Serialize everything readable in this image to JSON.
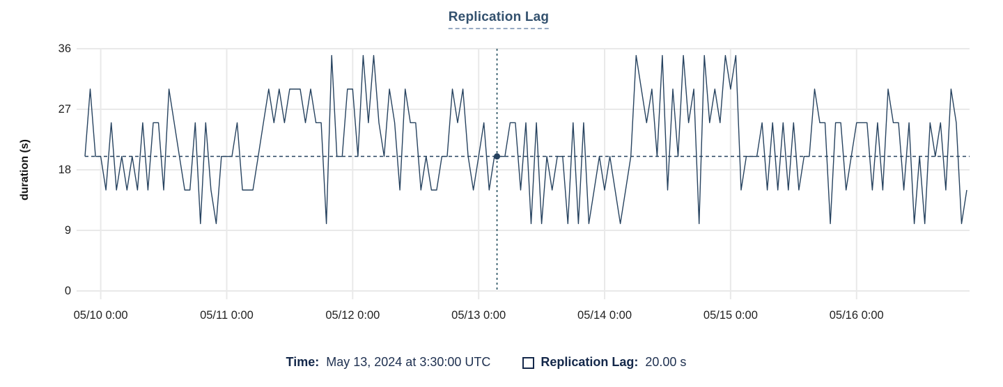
{
  "chart_data": {
    "type": "line",
    "title": "Replication Lag",
    "ylabel": "duration (s)",
    "xlabel": "",
    "ylim": [
      0,
      36
    ],
    "y_ticks": [
      0,
      9,
      18,
      27,
      36
    ],
    "grid": true,
    "legend_position": "top-center",
    "x_ticks": [
      {
        "index": 3,
        "label": "05/10 0:00"
      },
      {
        "index": 27,
        "label": "05/11 0:00"
      },
      {
        "index": 51,
        "label": "05/12 0:00"
      },
      {
        "index": 75,
        "label": "05/13 0:00"
      },
      {
        "index": 99,
        "label": "05/14 0:00"
      },
      {
        "index": 123,
        "label": "05/15 0:00"
      },
      {
        "index": 147,
        "label": "05/16 0:00"
      }
    ],
    "series": [
      {
        "name": "Replication Lag",
        "unit": "s",
        "color": "#26425f",
        "values": [
          20,
          30,
          20,
          20,
          15,
          25,
          15,
          20,
          15,
          20,
          15,
          25,
          15,
          25,
          25,
          15,
          30,
          25,
          20,
          15,
          15,
          25,
          10,
          25,
          15,
          10,
          20,
          20,
          20,
          25,
          15,
          15,
          15,
          20,
          25,
          30,
          25,
          30,
          25,
          30,
          30,
          30,
          25,
          30,
          25,
          25,
          10,
          35,
          20,
          20,
          30,
          30,
          20,
          35,
          25,
          35,
          25,
          20,
          30,
          25,
          15,
          30,
          25,
          25,
          15,
          20,
          15,
          15,
          20,
          20,
          30,
          25,
          30,
          20,
          15,
          20,
          25,
          15,
          20,
          20,
          20,
          25,
          25,
          15,
          25,
          10,
          25,
          10,
          20,
          15,
          20,
          20,
          10,
          25,
          10,
          25,
          10,
          15,
          20,
          15,
          20,
          15,
          10,
          15,
          20,
          35,
          30,
          25,
          30,
          20,
          35,
          15,
          30,
          20,
          35,
          25,
          30,
          10,
          35,
          25,
          30,
          25,
          35,
          30,
          35,
          15,
          20,
          20,
          20,
          25,
          15,
          25,
          15,
          25,
          15,
          25,
          15,
          20,
          20,
          30,
          25,
          25,
          10,
          25,
          25,
          15,
          20,
          25,
          25,
          25,
          15,
          25,
          15,
          30,
          25,
          25,
          15,
          25,
          10,
          20,
          10,
          25,
          20,
          25,
          15,
          30,
          25,
          10,
          15
        ]
      }
    ],
    "crosshair": {
      "x_index": 78.5,
      "value": 20,
      "time_label": "May 13, 2024 at 3:30:00 UTC",
      "value_label": "20.00 s"
    }
  },
  "footer": {
    "time_label": "Time:",
    "time_value": "May 13, 2024 at 3:30:00 UTC",
    "series_label": "Replication Lag:",
    "series_value": "20.00 s"
  },
  "colors": {
    "series_line": "#26425f",
    "crosshair_line": "#2e5665",
    "reference_line": "#26425f",
    "marker_dot": "#26425f",
    "grid_line": "#e9e9e9",
    "axis_text": "#1f1f1f",
    "title_text": "#33516e",
    "title_underline": "#97aac3",
    "footer_label": "#14284a",
    "footer_value": "#1e3050"
  }
}
